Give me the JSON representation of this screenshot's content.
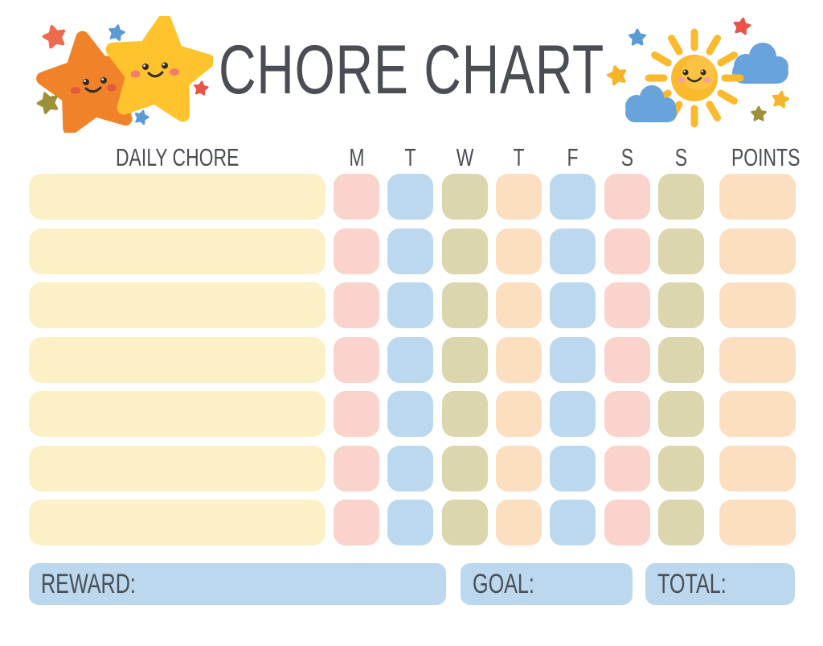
{
  "page": {
    "title": "CHORE CHART",
    "background": "#ffffff"
  },
  "colors": {
    "text": "#4a4e54",
    "cream": "#fcf0c7",
    "pink": "#fad3cc",
    "blue": "#bcd8ef",
    "olive": "#dbd6ae",
    "peach": "#fbdfc0",
    "bar_blue": "#bcd8ee"
  },
  "table": {
    "chore_header": "DAILY CHORE",
    "days": [
      "M",
      "T",
      "W",
      "T",
      "F",
      "S",
      "S"
    ],
    "points_header": "POINTS",
    "chores": [
      "",
      "",
      "",
      "",
      "",
      "",
      ""
    ],
    "chore_cell_color": "cream",
    "day_cell_colors": [
      "pink",
      "blue",
      "olive",
      "peach",
      "blue",
      "pink",
      "olive"
    ],
    "points_cell_color": "peach"
  },
  "footer": {
    "reward_label": "REWARD:",
    "reward_value": "",
    "goal_label": "GOAL:",
    "goal_value": "",
    "total_label": "TOTAL:",
    "total_value": ""
  },
  "decorations": {
    "left": {
      "icons": [
        "orange-star-face-icon",
        "yellow-star-face-icon",
        "mini-star-icons"
      ]
    },
    "right": {
      "icons": [
        "sun-face-icon",
        "cloud-icons",
        "mini-star-icons"
      ]
    }
  },
  "decor_colors": {
    "orange_star": "#f0832a",
    "yellow_star": "#ffc32d",
    "sun": "#fbb92d",
    "cloud": "#68a3dc",
    "mini_red": "#e8544a",
    "mini_salmon": "#ed6a4e",
    "mini_blue": "#5b9bd5",
    "mini_olive": "#9c9038",
    "mini_yellow": "#f6b42b",
    "face": "#352b21",
    "orange_cheek": "#e25b38",
    "yellow_cheek": "#f37c72",
    "sun_cheek": "#f2a19b"
  }
}
